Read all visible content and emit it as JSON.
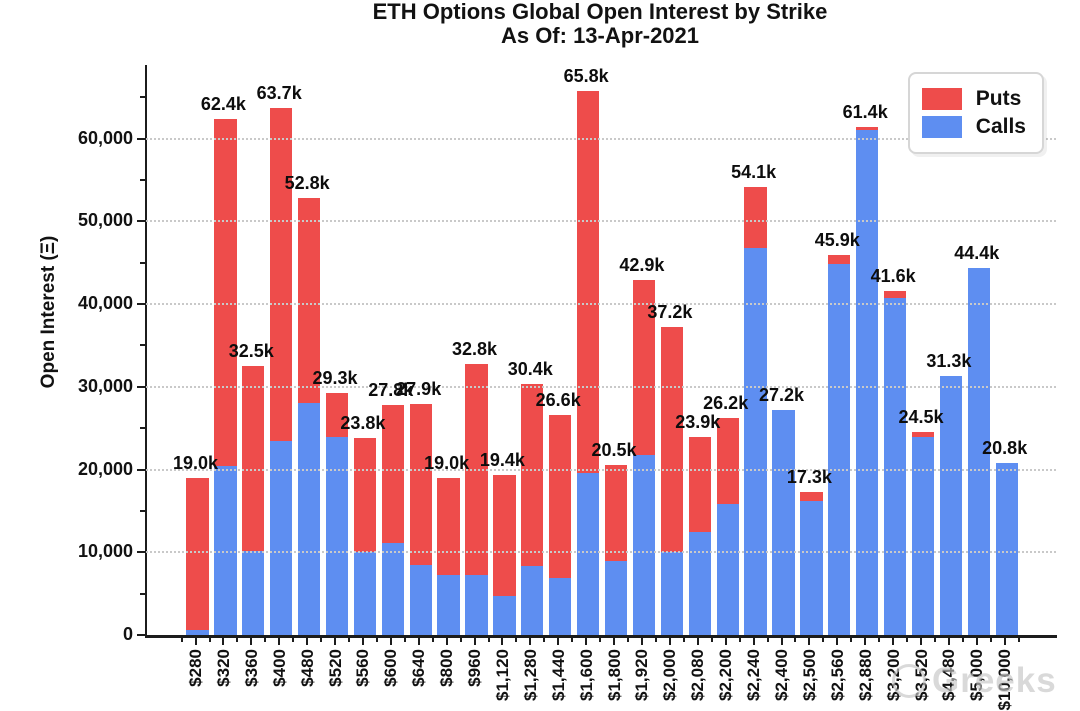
{
  "title": {
    "line1": "ETH Options Global Open Interest by Strike",
    "line2": "As Of: 13-Apr-2021"
  },
  "y_axis": {
    "label": "Open Interest (Ξ)",
    "tick_labels": [
      "0",
      "10,000",
      "20,000",
      "30,000",
      "40,000",
      "50,000",
      "60,000"
    ]
  },
  "legend": {
    "items": [
      {
        "label": "Puts",
        "color": "#ee4c4b"
      },
      {
        "label": "Calls",
        "color": "#5e8ef1"
      }
    ]
  },
  "watermark": {
    "text": "Greeks"
  },
  "chart_data": {
    "type": "bar",
    "stacked": true,
    "title": "ETH Options Global Open Interest by Strike",
    "subtitle": "As Of: 13-Apr-2021",
    "xlabel": "Strike",
    "ylabel": "Open Interest (Ξ)",
    "ylim": [
      0,
      68900
    ],
    "grid": "horizontal-dotted",
    "legend_position": "top-right",
    "categories": [
      "$280",
      "$320",
      "$360",
      "$400",
      "$480",
      "$520",
      "$560",
      "$600",
      "$640",
      "$800",
      "$960",
      "$1,120",
      "$1,280",
      "$1,440",
      "$1,600",
      "$1,800",
      "$1,920",
      "$2,000",
      "$2,080",
      "$2,200",
      "$2,240",
      "$2,400",
      "$2,500",
      "$2,560",
      "$2,880",
      "$3,200",
      "$3,520",
      "$4,480",
      "$5,000",
      "$10,000"
    ],
    "series": [
      {
        "name": "Calls",
        "color": "#5e8ef1",
        "values": [
          600,
          20400,
          10100,
          23400,
          28000,
          24000,
          10000,
          11100,
          8500,
          7300,
          7200,
          4700,
          8300,
          6900,
          19600,
          8900,
          21800,
          10000,
          12500,
          15900,
          46800,
          27200,
          16200,
          44900,
          61000,
          40700,
          24000,
          31300,
          44400,
          20800
        ]
      },
      {
        "name": "Puts",
        "color": "#ee4c4b",
        "values": [
          18400,
          42000,
          22400,
          40300,
          24800,
          5300,
          13800,
          16700,
          19400,
          11700,
          25600,
          14700,
          22100,
          19700,
          46200,
          11600,
          21100,
          27200,
          11400,
          10300,
          7300,
          0,
          1100,
          1000,
          400,
          900,
          500,
          0,
          0,
          0
        ]
      }
    ],
    "totals": [
      19000,
      62400,
      32500,
      63700,
      52800,
      29300,
      23800,
      27800,
      27900,
      19000,
      32800,
      19400,
      30400,
      26600,
      65800,
      20500,
      42900,
      37200,
      23900,
      26200,
      54100,
      27200,
      17300,
      45900,
      61400,
      41600,
      24500,
      31300,
      44400,
      20800
    ],
    "total_labels": [
      "19.0k",
      "62.4k",
      "32.5k",
      "63.7k",
      "52.8k",
      "29.3k",
      "23.8k",
      "27.8k",
      "27.9k",
      "19.0k",
      "32.8k",
      "19.4k",
      "30.4k",
      "26.6k",
      "65.8k",
      "20.5k",
      "42.9k",
      "37.2k",
      "23.9k",
      "26.2k",
      "54.1k",
      "27.2k",
      "17.3k",
      "45.9k",
      "61.4k",
      "41.6k",
      "24.5k",
      "31.3k",
      "44.4k",
      "20.8k"
    ]
  }
}
